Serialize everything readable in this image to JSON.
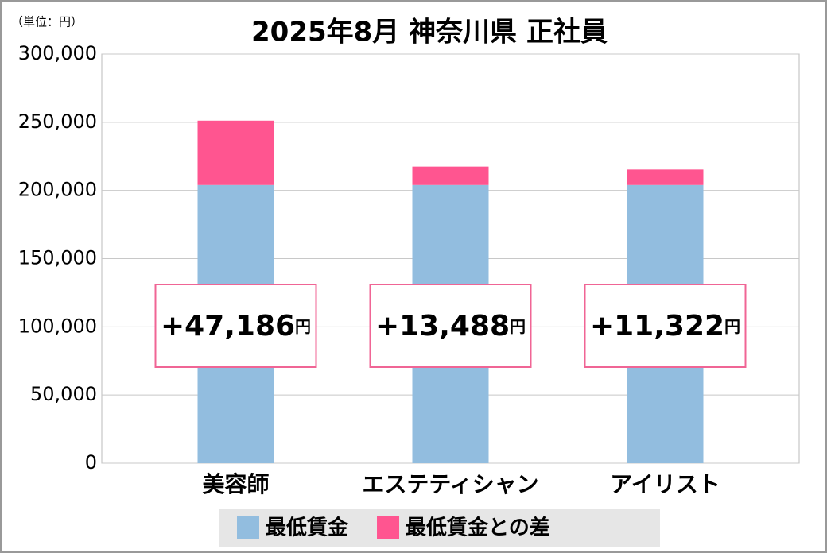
{
  "chart_data": {
    "type": "stacked_bar",
    "title": "2025年8月 神奈川県 正社員",
    "unit_note": "（単位：円）",
    "categories": [
      "美容師",
      "エステティシャン",
      "アイリスト"
    ],
    "series": [
      {
        "name": "最低賃金",
        "color": "#92bddf",
        "values": [
          204000,
          204000,
          204000
        ]
      },
      {
        "name": "最低賃金との差",
        "color": "#ff5590",
        "values": [
          47186,
          13488,
          11322
        ],
        "value_labels": [
          "+47,186",
          "+13,488",
          "+11,322"
        ]
      }
    ],
    "value_label_unit": "円",
    "ylim": [
      0,
      300000
    ],
    "yticks": [
      0,
      {
        "value": 50000,
        "label": "50,000"
      },
      {
        "value": 100000,
        "label": "100,000"
      },
      {
        "value": 150000,
        "label": "150,000"
      },
      {
        "value": 200000,
        "label": "200,000"
      },
      {
        "value": 250000,
        "label": "250,000"
      },
      {
        "value": 300000,
        "label": "300,000"
      }
    ],
    "grid": true
  }
}
